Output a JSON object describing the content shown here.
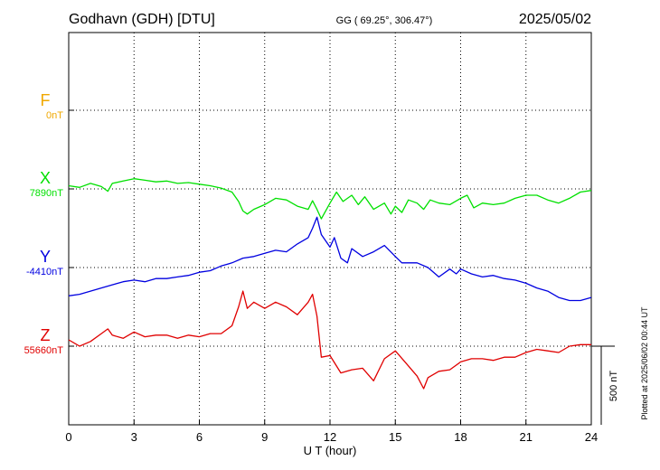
{
  "header": {
    "station": "Godhavn (GDH)  [DTU]",
    "coords": "GG ( 69.25°, 306.47°)",
    "date": "2025/05/02"
  },
  "plotted_note": "Plotted at 2025/06/02 00:44 UT",
  "colors": {
    "F": "#f0a800",
    "X": "#00e000",
    "Y": "#0000e0",
    "Z": "#e00000",
    "axis": "#000000"
  },
  "chart_data": {
    "type": "line",
    "xlabel": "U T (hour)",
    "xlim": [
      0,
      24
    ],
    "xticks": [
      "0",
      "3",
      "6",
      "9",
      "12",
      "15",
      "18",
      "21",
      "24"
    ],
    "scale_bar": "500 nT",
    "series": [
      {
        "name": "F",
        "baseline_label": "0nT",
        "baseline": 0,
        "color": "#f0a800",
        "x": [],
        "y": []
      },
      {
        "name": "X",
        "baseline_label": "7890nT",
        "baseline": 7890,
        "color": "#00e000",
        "x": [
          0,
          0.5,
          1,
          1.5,
          1.8,
          2,
          2.5,
          3,
          3.5,
          4,
          4.5,
          5,
          5.5,
          6,
          6.5,
          7,
          7.5,
          7.8,
          8,
          8.2,
          8.5,
          9,
          9.5,
          10,
          10.5,
          11,
          11.2,
          11.4,
          11.6,
          12,
          12.3,
          12.6,
          13,
          13.3,
          13.6,
          14,
          14.5,
          14.8,
          15,
          15.3,
          15.6,
          16,
          16.3,
          16.6,
          17,
          17.5,
          18,
          18.3,
          18.6,
          19,
          19.5,
          20,
          20.5,
          21,
          21.5,
          22,
          22.5,
          23,
          23.5,
          24
        ],
        "y": [
          7910,
          7900,
          7925,
          7905,
          7875,
          7925,
          7940,
          7955,
          7945,
          7935,
          7940,
          7925,
          7930,
          7920,
          7910,
          7895,
          7870,
          7810,
          7750,
          7730,
          7760,
          7790,
          7830,
          7820,
          7780,
          7760,
          7815,
          7760,
          7700,
          7800,
          7870,
          7810,
          7850,
          7790,
          7840,
          7760,
          7800,
          7730,
          7780,
          7740,
          7820,
          7800,
          7760,
          7820,
          7800,
          7790,
          7830,
          7850,
          7770,
          7800,
          7790,
          7800,
          7830,
          7850,
          7850,
          7820,
          7800,
          7830,
          7870,
          7880
        ]
      },
      {
        "name": "Y",
        "baseline_label": "-4410nT",
        "baseline": -4410,
        "color": "#0000e0",
        "x": [
          0,
          0.5,
          1,
          1.5,
          2,
          2.5,
          3,
          3.5,
          4,
          4.5,
          5,
          5.5,
          6,
          6.5,
          7,
          7.5,
          8,
          8.5,
          9,
          9.5,
          10,
          10.5,
          11,
          11.2,
          11.4,
          11.6,
          12,
          12.2,
          12.5,
          12.8,
          13,
          13.5,
          14,
          14.5,
          15,
          15.3,
          15.6,
          16,
          16.5,
          17,
          17.5,
          17.8,
          18,
          18.5,
          19,
          19.5,
          20,
          20.5,
          21,
          21.5,
          22,
          22.5,
          23,
          23.5,
          24
        ],
        "y": [
          -4590,
          -4580,
          -4560,
          -4540,
          -4520,
          -4500,
          -4490,
          -4500,
          -4480,
          -4480,
          -4470,
          -4460,
          -4440,
          -4430,
          -4400,
          -4380,
          -4350,
          -4340,
          -4320,
          -4300,
          -4310,
          -4260,
          -4220,
          -4160,
          -4090,
          -4200,
          -4280,
          -4220,
          -4350,
          -4380,
          -4290,
          -4340,
          -4310,
          -4270,
          -4340,
          -4380,
          -4380,
          -4380,
          -4410,
          -4470,
          -4420,
          -4450,
          -4420,
          -4450,
          -4470,
          -4460,
          -4480,
          -4490,
          -4510,
          -4540,
          -4560,
          -4600,
          -4620,
          -4620,
          -4600
        ]
      },
      {
        "name": "Z",
        "baseline_label": "55660nT",
        "baseline": 55660,
        "color": "#e00000",
        "x": [
          0,
          0.5,
          1,
          1.5,
          1.8,
          2,
          2.5,
          3,
          3.5,
          4,
          4.5,
          5,
          5.5,
          6,
          6.5,
          7,
          7.5,
          7.8,
          8,
          8.2,
          8.5,
          9,
          9.5,
          10,
          10.5,
          11,
          11.2,
          11.4,
          11.6,
          12,
          12.5,
          13,
          13.5,
          14,
          14.5,
          15,
          15.5,
          16,
          16.3,
          16.5,
          17,
          17.5,
          18,
          18.5,
          19,
          19.5,
          20,
          20.5,
          21,
          21.5,
          22,
          22.5,
          23,
          23.5,
          24
        ],
        "y": [
          55700,
          55660,
          55690,
          55740,
          55770,
          55730,
          55710,
          55750,
          55720,
          55730,
          55730,
          55710,
          55730,
          55720,
          55740,
          55740,
          55790,
          55910,
          56010,
          55900,
          55940,
          55900,
          55940,
          55910,
          55860,
          55940,
          55990,
          55850,
          55590,
          55600,
          55490,
          55510,
          55520,
          55440,
          55580,
          55630,
          55550,
          55470,
          55390,
          55460,
          55500,
          55510,
          55560,
          55580,
          55580,
          55570,
          55590,
          55590,
          55620,
          55640,
          55630,
          55620,
          55660,
          55670,
          55670
        ]
      }
    ]
  }
}
